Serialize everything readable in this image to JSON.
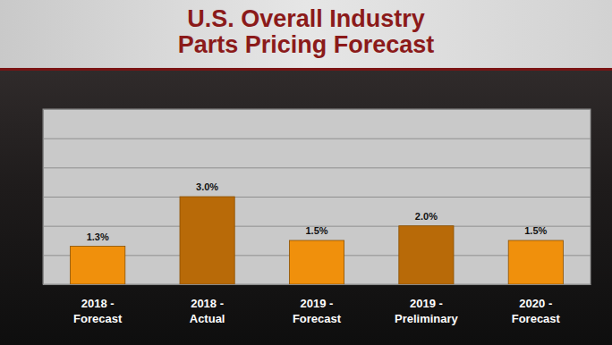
{
  "chart_data": {
    "type": "bar",
    "title": "U.S. Overall Industry Parts Pricing Forecast",
    "categories": [
      "2018 - Forecast",
      "2018 - Actual",
      "2019 - Forecast",
      "2019 - Preliminary",
      "2020 - Forecast"
    ],
    "values": [
      1.3,
      3.0,
      1.5,
      2.0,
      1.5
    ],
    "value_labels": [
      "1.3%",
      "3.0%",
      "1.5%",
      "2.0%",
      "1.5%"
    ],
    "colors": [
      "#f0900c",
      "#b86a08",
      "#f0900c",
      "#b86a08",
      "#f0900c"
    ],
    "ylim": [
      0,
      6
    ],
    "yticks": [
      0,
      1,
      2,
      3,
      4,
      5,
      6
    ],
    "grid": true,
    "data_labels": true,
    "tick_labels": false
  }
}
